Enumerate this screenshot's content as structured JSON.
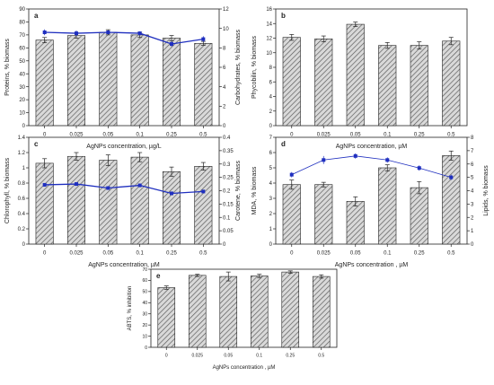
{
  "chart_data": [
    {
      "panel_label": "a",
      "type": "bar",
      "categories": [
        "0",
        "0.025",
        "0.05",
        "0.1",
        "0.25",
        "0.5"
      ],
      "xlabel": "AgNPs concentration, µg/L",
      "ylabel": "Proteins, % biomass",
      "ylim": [
        0,
        90
      ],
      "yticks": [
        0,
        10,
        20,
        30,
        40,
        50,
        60,
        70,
        80,
        90
      ],
      "y2label": "Carbohydrates, % biomass",
      "y2lim": [
        0,
        12
      ],
      "y2ticks": [
        0,
        2,
        4,
        6,
        8,
        10,
        12
      ],
      "series": [
        {
          "values": [
            66,
            69.5,
            72,
            70,
            67.5,
            63.5
          ],
          "errors": [
            2,
            2,
            2,
            2,
            2,
            1.5
          ]
        },
        {
          "axis": "right",
          "kind": "line",
          "values": [
            9.6,
            9.5,
            9.6,
            9.5,
            8.4,
            8.9
          ],
          "errors": [
            0.3,
            0.3,
            0.2,
            0.2,
            0.3,
            0.3
          ]
        }
      ]
    },
    {
      "panel_label": "b",
      "type": "bar",
      "categories": [
        "0",
        "0.025",
        "0.05",
        "0.1",
        "0.25",
        "0.5"
      ],
      "xlabel": "AgNPs concentration, µM",
      "ylabel": "Phycobilin, % biomass",
      "ylim": [
        0,
        16
      ],
      "yticks": [
        0,
        2,
        4,
        6,
        8,
        10,
        12,
        14,
        16
      ],
      "series": [
        {
          "values": [
            12.1,
            11.9,
            13.9,
            11.0,
            11.0,
            11.6
          ],
          "errors": [
            0.4,
            0.4,
            0.3,
            0.4,
            0.5,
            0.5
          ]
        }
      ]
    },
    {
      "panel_label": "c",
      "type": "bar",
      "categories": [
        "0",
        "0.025",
        "0.05",
        "0.1",
        "0.25",
        "0.5"
      ],
      "xlabel": "AgNPs concentration, µM",
      "ylabel": "Chlorophyll, % biomass",
      "ylim": [
        0,
        1.4
      ],
      "yticks": [
        0,
        0.2,
        0.4,
        0.6,
        0.8,
        1.0,
        1.2,
        1.4
      ],
      "y2label": "Carotene, % biomass",
      "y2lim": [
        0,
        0.4
      ],
      "y2ticks": [
        0,
        0.05,
        0.1,
        0.15,
        0.2,
        0.25,
        0.3,
        0.35,
        0.4
      ],
      "series": [
        {
          "values": [
            1.06,
            1.15,
            1.1,
            1.14,
            0.95,
            1.02
          ],
          "errors": [
            0.06,
            0.05,
            0.07,
            0.06,
            0.06,
            0.05
          ]
        },
        {
          "axis": "right",
          "kind": "line",
          "values": [
            0.222,
            0.225,
            0.21,
            0.22,
            0.19,
            0.197
          ],
          "errors": [
            0.005,
            0.005,
            0.005,
            0.005,
            0.005,
            0.005
          ]
        }
      ]
    },
    {
      "panel_label": "d",
      "type": "bar",
      "categories": [
        "0",
        "0.025",
        "0.05",
        "0.1",
        "0.25",
        "0.5"
      ],
      "xlabel": "AgNPs concentration , µM",
      "ylabel": "MDA, % biomass",
      "ylim": [
        0,
        7
      ],
      "yticks": [
        0,
        1,
        2,
        3,
        4,
        5,
        6,
        7
      ],
      "y2label": "Lipids, % biomass",
      "y2lim": [
        0,
        8
      ],
      "y2ticks": [
        0,
        1,
        2,
        3,
        4,
        5,
        6,
        7,
        8
      ],
      "series": [
        {
          "values": [
            3.9,
            3.9,
            2.8,
            5.0,
            3.7,
            5.8
          ],
          "errors": [
            0.3,
            0.15,
            0.3,
            0.2,
            0.4,
            0.3
          ]
        },
        {
          "axis": "right",
          "kind": "line",
          "values": [
            5.2,
            6.3,
            6.6,
            6.3,
            5.7,
            5.0
          ],
          "errors": [
            0.2,
            0.3,
            0.2,
            0.2,
            0.2,
            0.2
          ]
        }
      ]
    },
    {
      "panel_label": "e",
      "type": "bar",
      "categories": [
        "0",
        "0.025",
        "0.05",
        "0.1",
        "0.25",
        "0.5"
      ],
      "xlabel": "AgNPs concentration , µM",
      "ylabel": "ABTS, % inhibition",
      "ylim": [
        0,
        70
      ],
      "yticks": [
        0,
        10,
        20,
        30,
        40,
        50,
        60,
        70
      ],
      "series": [
        {
          "values": [
            53.5,
            64.5,
            63.5,
            64,
            67.5,
            63.5
          ],
          "errors": [
            1.5,
            1,
            4,
            1.5,
            1,
            1.5
          ]
        }
      ]
    }
  ],
  "colors": {
    "axis": "#222222",
    "bar_fill": "#d9d9d9",
    "bar_hatch": "#555555",
    "line": "#1f2fbf",
    "marker": "#1f2fbf"
  }
}
